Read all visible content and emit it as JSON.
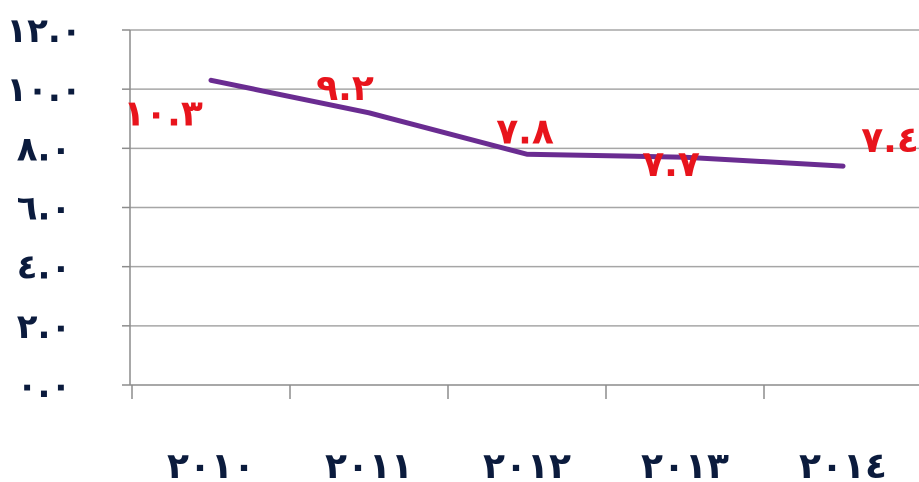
{
  "chart_data": {
    "type": "line",
    "categories": [
      "٢٠١٠",
      "٢٠١١",
      "٢٠١٢",
      "٢٠١٣",
      "٢٠١٤"
    ],
    "series": [
      {
        "values": [
          10.3,
          9.2,
          7.8,
          7.7,
          7.4
        ],
        "data_labels": [
          "١٠.٣",
          "٩.٢",
          "٧.٨",
          "٧.٧",
          "٧.٤"
        ]
      }
    ],
    "y_ticks": [
      {
        "value": 0,
        "label": "٠.٠"
      },
      {
        "value": 2,
        "label": "٢.٠"
      },
      {
        "value": 4,
        "label": "٤.٠"
      },
      {
        "value": 6,
        "label": "٦.٠"
      },
      {
        "value": 8,
        "label": "٨.٠"
      },
      {
        "value": 10,
        "label": "١٠.٠"
      },
      {
        "value": 12,
        "label": "١٢.٠"
      }
    ],
    "ylim": [
      0,
      12
    ],
    "grid": true,
    "legend": "none",
    "colors": {
      "line": "#6a2c91",
      "data_label": "#e8141c",
      "tick_label": "#0b1b3d",
      "gridline": "#a6a6a6",
      "axis": "#8c8c8c"
    }
  }
}
